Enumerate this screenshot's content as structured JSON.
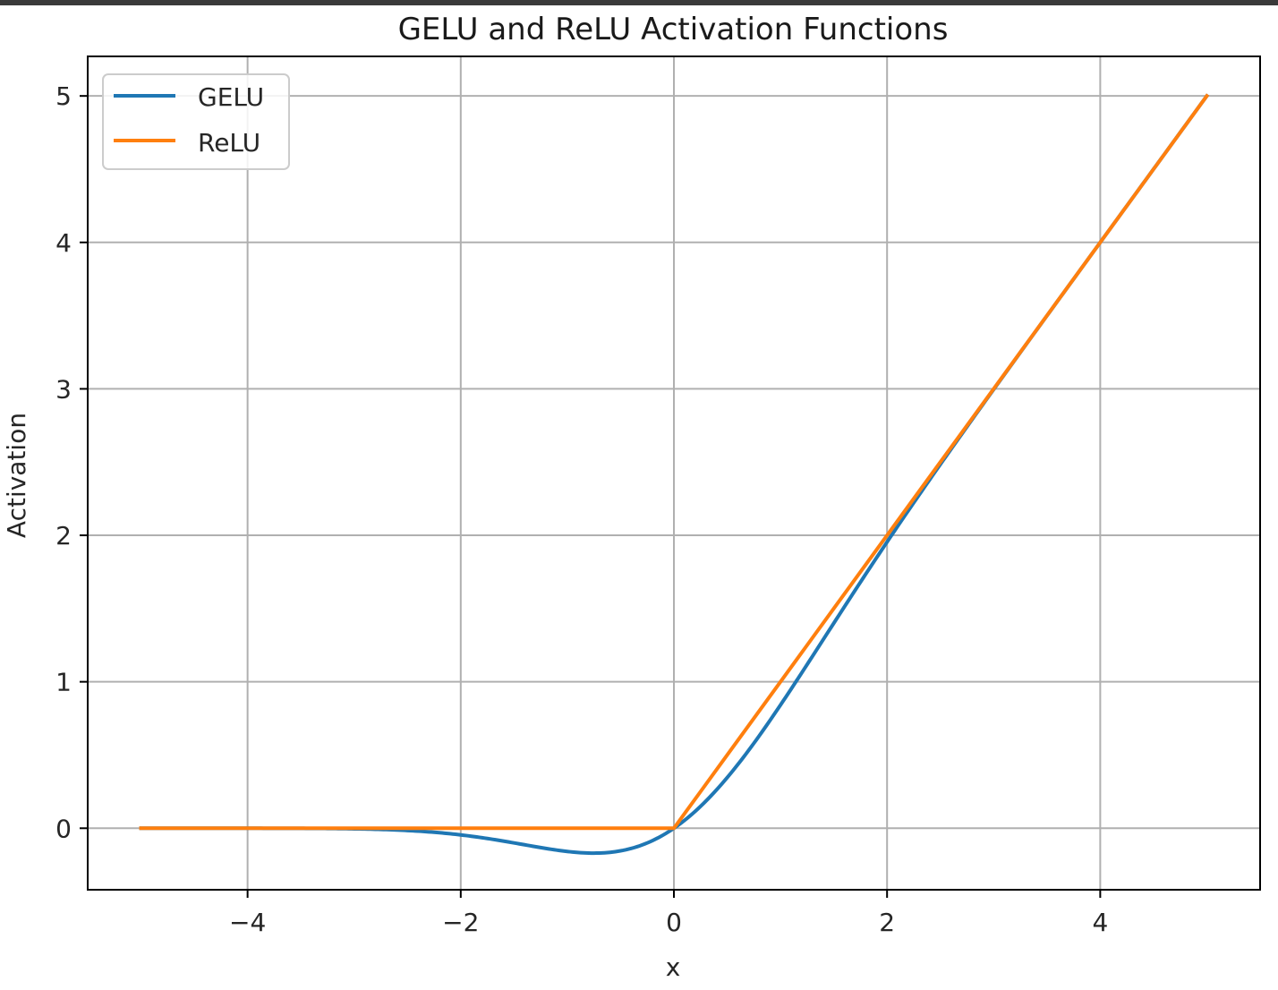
{
  "chart_data": {
    "type": "line",
    "title": "GELU and ReLU Activation Functions",
    "xlabel": "x",
    "ylabel": "Activation",
    "xlim": [
      -5.5,
      5.5
    ],
    "ylim": [
      -0.42,
      5.27
    ],
    "grid": true,
    "legend_position": "top-left",
    "x_ticks": [
      -4,
      -2,
      0,
      2,
      4
    ],
    "x_tick_labels": [
      "−4",
      "−2",
      "0",
      "2",
      "4"
    ],
    "y_ticks": [
      0,
      1,
      2,
      3,
      4,
      5
    ],
    "y_tick_labels": [
      "0",
      "1",
      "2",
      "3",
      "4",
      "5"
    ],
    "x": [
      -5,
      -4.5,
      -4,
      -3.5,
      -3,
      -2.5,
      -2,
      -1.75,
      -1.5,
      -1.25,
      -1,
      -0.75,
      -0.5,
      -0.25,
      0,
      0.25,
      0.5,
      0.75,
      1,
      1.25,
      1.5,
      1.75,
      2,
      2.5,
      3,
      3.5,
      4,
      4.5,
      5
    ],
    "series": [
      {
        "name": "GELU",
        "color": "#1f77b4",
        "values": [
          0,
          0,
          -0.0001,
          -0.0008,
          -0.004,
          -0.0155,
          -0.0455,
          -0.0702,
          -0.1002,
          -0.1321,
          -0.1587,
          -0.17,
          -0.1543,
          -0.1003,
          0,
          0.1497,
          0.3457,
          0.58,
          0.8413,
          1.1179,
          1.3998,
          1.6798,
          1.9545,
          2.4845,
          2.996,
          3.4992,
          3.9999,
          4.5,
          5
        ]
      },
      {
        "name": "ReLU",
        "color": "#ff7f0e",
        "values": [
          0,
          0,
          0,
          0,
          0,
          0,
          0,
          0,
          0,
          0,
          0,
          0,
          0,
          0,
          0,
          0.25,
          0.5,
          0.75,
          1,
          1.25,
          1.5,
          1.75,
          2,
          2.5,
          3,
          3.5,
          4,
          4.5,
          5
        ]
      }
    ]
  }
}
